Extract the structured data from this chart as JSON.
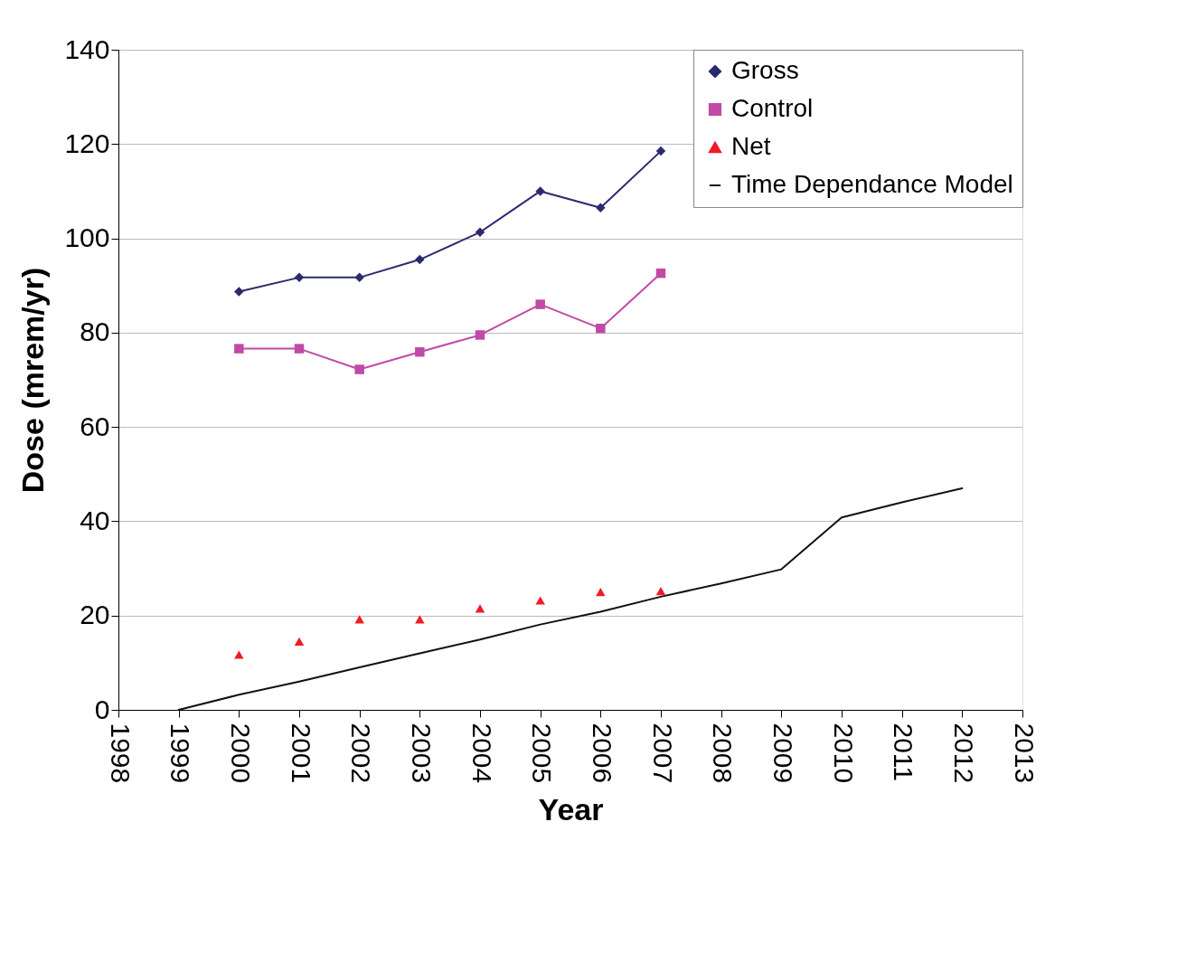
{
  "chart_data": {
    "type": "line",
    "xlabel": "Year",
    "ylabel": "Dose (mrem/yr)",
    "xlim": [
      1998,
      2013
    ],
    "xticks": [
      1998,
      1999,
      2000,
      2001,
      2002,
      2003,
      2004,
      2005,
      2006,
      2007,
      2008,
      2009,
      2010,
      2011,
      2012,
      2013
    ],
    "ylim": [
      0,
      140
    ],
    "yticks": [
      0,
      20,
      40,
      60,
      80,
      100,
      120,
      140
    ],
    "grid": "y",
    "legend": "top right",
    "series": [
      {
        "name": "Gross",
        "marker": "diamond",
        "color": "#2b2a6e",
        "x": [
          2000,
          2001,
          2002,
          2003,
          2004,
          2005,
          2006,
          2007
        ],
        "values": [
          88.7,
          91.7,
          91.7,
          95.5,
          101.3,
          110,
          106.5,
          118.5
        ]
      },
      {
        "name": "Control",
        "marker": "square",
        "color": "#c04aa6",
        "x": [
          2000,
          2001,
          2002,
          2003,
          2004,
          2005,
          2006,
          2007
        ],
        "values": [
          76.6,
          76.6,
          72.2,
          75.9,
          79.5,
          86,
          80.9,
          92.6
        ]
      },
      {
        "name": "Net",
        "type": "scatter",
        "marker": "triangle",
        "color": "#ee1c25",
        "x": [
          2000,
          2001,
          2002,
          2003,
          2004,
          2005,
          2006,
          2007
        ],
        "values": [
          11.7,
          14.5,
          19.2,
          19.2,
          21.5,
          23.2,
          25,
          25.2
        ]
      },
      {
        "name": "Time Dependance Model",
        "marker": "none",
        "color": "#111111",
        "x": [
          1999,
          2000,
          2001,
          2002,
          2003,
          2004,
          2005,
          2006,
          2007,
          2008,
          2009,
          2010,
          2011,
          2012
        ],
        "values": [
          0,
          3.2,
          6,
          9,
          12,
          14.9,
          18.1,
          20.8,
          24,
          26.8,
          29.8,
          40.8,
          44,
          47
        ]
      }
    ]
  }
}
